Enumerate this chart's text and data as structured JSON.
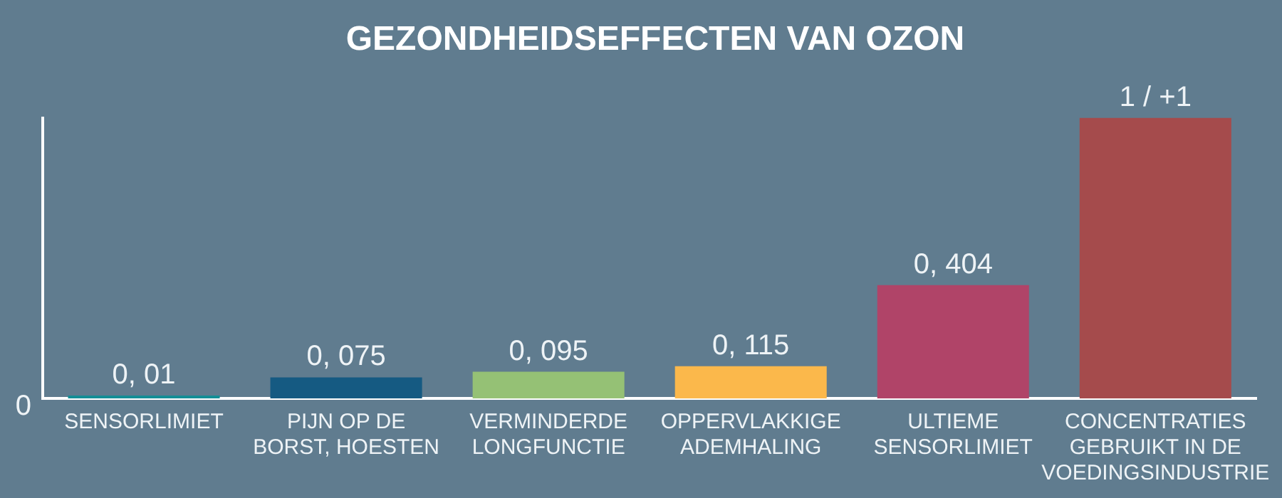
{
  "chart_data": {
    "type": "bar",
    "title": "GEZONDHEIDSEFFECTEN VAN OZON",
    "categories": [
      "SENSORLIMIET",
      "PIJN OP DE\nBORST, HOESTEN",
      "VERMINDERDE\nLONGFUNCTIE",
      "OPPERVLAKKIGE\nADEMHALING",
      "ULTIEME\nSENSORLIMIET",
      "CONCENTRATIES\nGEBRUIKT IN DE\nVOEDINGSINDUSTRIE"
    ],
    "values": [
      0.01,
      0.075,
      0.095,
      0.115,
      0.404,
      1
    ],
    "colors": [
      "#138e96",
      "#155a82",
      "#95c175",
      "#fbb84b",
      "#b04468",
      "#a54b4c"
    ],
    "value_labels": [
      "0, 01",
      "0, 075",
      "0, 095",
      "0, 115",
      "0, 404",
      "1 / +1"
    ],
    "ylim": [
      0,
      1
    ],
    "annotations": [
      "0"
    ],
    "legend": false
  }
}
